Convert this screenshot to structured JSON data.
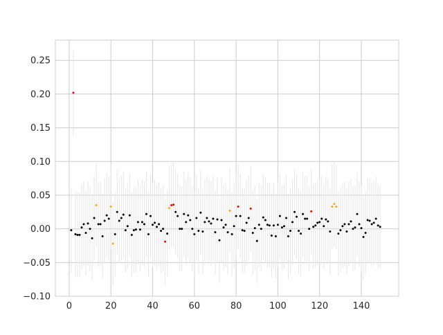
{
  "chart_data": {
    "type": "scatter",
    "title": "",
    "xlabel": "",
    "ylabel": "",
    "xlim": [
      -6.6,
      157.9
    ],
    "ylim": [
      -0.1,
      0.28
    ],
    "xticks": [
      0,
      20,
      40,
      60,
      80,
      100,
      120,
      140
    ],
    "yticks": [
      -0.1,
      -0.05,
      0.0,
      0.05,
      0.1,
      0.15,
      0.2,
      0.25
    ],
    "ytick_labels": [
      "−0.10",
      "−0.05",
      "0.00",
      "0.05",
      "0.10",
      "0.15",
      "0.20",
      "0.25"
    ],
    "grid": true,
    "yerr": 0.063,
    "colors": {
      "black": "#000000",
      "orange": "#ffa500",
      "red": "#ff0000",
      "errorbar": "#e6e6e6",
      "grid": "#cccccc"
    },
    "points": [
      [
        1,
        -0.002,
        "black"
      ],
      [
        2,
        0.202,
        "red"
      ],
      [
        3,
        -0.008,
        "black"
      ],
      [
        4,
        -0.009,
        "black"
      ],
      [
        5,
        -0.009,
        "black"
      ],
      [
        6,
        0.002,
        "black"
      ],
      [
        7,
        0.007,
        "black"
      ],
      [
        8,
        -0.006,
        "black"
      ],
      [
        9,
        0.008,
        "black"
      ],
      [
        10,
        0.0,
        "black"
      ],
      [
        11,
        -0.014,
        "black"
      ],
      [
        12,
        0.016,
        "black"
      ],
      [
        13,
        0.035,
        "orange"
      ],
      [
        14,
        0.007,
        "black"
      ],
      [
        15,
        0.007,
        "black"
      ],
      [
        16,
        -0.011,
        "black"
      ],
      [
        17,
        0.012,
        "black"
      ],
      [
        18,
        0.02,
        "black"
      ],
      [
        19,
        0.015,
        "black"
      ],
      [
        20,
        0.033,
        "orange"
      ],
      [
        21,
        -0.022,
        "orange"
      ],
      [
        22,
        -0.008,
        "black"
      ],
      [
        23,
        0.025,
        "black"
      ],
      [
        24,
        0.012,
        "black"
      ],
      [
        25,
        0.016,
        "black"
      ],
      [
        26,
        0.021,
        "black"
      ],
      [
        27,
        -0.002,
        "black"
      ],
      [
        28,
        0.004,
        "black"
      ],
      [
        29,
        0.02,
        "black"
      ],
      [
        30,
        -0.009,
        "black"
      ],
      [
        31,
        -0.002,
        "black"
      ],
      [
        32,
        -0.001,
        "black"
      ],
      [
        33,
        0.01,
        "black"
      ],
      [
        34,
        -0.001,
        "black"
      ],
      [
        35,
        0.01,
        "black"
      ],
      [
        36,
        0.007,
        "black"
      ],
      [
        37,
        0.022,
        "black"
      ],
      [
        38,
        -0.008,
        "black"
      ],
      [
        39,
        0.019,
        "black"
      ],
      [
        40,
        0.006,
        "black"
      ],
      [
        41,
        0.009,
        "black"
      ],
      [
        42,
        0.003,
        "black"
      ],
      [
        43,
        0.007,
        "black"
      ],
      [
        44,
        -0.003,
        "black"
      ],
      [
        45,
        0.0,
        "black"
      ],
      [
        46,
        -0.019,
        "red"
      ],
      [
        47,
        -0.007,
        "black"
      ],
      [
        48,
        0.031,
        "orange"
      ],
      [
        49,
        0.035,
        "red"
      ],
      [
        50,
        0.036,
        "red"
      ],
      [
        51,
        0.025,
        "black"
      ],
      [
        52,
        0.019,
        "black"
      ],
      [
        53,
        0.0,
        "black"
      ],
      [
        54,
        0.0,
        "black"
      ],
      [
        55,
        0.022,
        "black"
      ],
      [
        56,
        0.01,
        "black"
      ],
      [
        57,
        0.02,
        "black"
      ],
      [
        58,
        0.013,
        "black"
      ],
      [
        59,
        0.0,
        "black"
      ],
      [
        60,
        -0.008,
        "black"
      ],
      [
        61,
        0.016,
        "black"
      ],
      [
        62,
        -0.003,
        "black"
      ],
      [
        63,
        0.024,
        "black"
      ],
      [
        64,
        -0.004,
        "black"
      ],
      [
        65,
        0.01,
        "black"
      ],
      [
        66,
        0.016,
        "black"
      ],
      [
        67,
        0.011,
        "black"
      ],
      [
        68,
        0.008,
        "black"
      ],
      [
        69,
        0.015,
        "black"
      ],
      [
        70,
        -0.005,
        "black"
      ],
      [
        71,
        0.014,
        "black"
      ],
      [
        72,
        -0.017,
        "black"
      ],
      [
        73,
        0.013,
        "black"
      ],
      [
        74,
        0.002,
        "black"
      ],
      [
        75,
        0.006,
        "black"
      ],
      [
        76,
        -0.005,
        "black"
      ],
      [
        77,
        0.027,
        "orange"
      ],
      [
        78,
        -0.008,
        "black"
      ],
      [
        79,
        0.004,
        "black"
      ],
      [
        80,
        0.019,
        "black"
      ],
      [
        81,
        0.033,
        "red"
      ],
      [
        82,
        0.019,
        "black"
      ],
      [
        83,
        -0.002,
        "black"
      ],
      [
        84,
        -0.003,
        "black"
      ],
      [
        85,
        0.009,
        "black"
      ],
      [
        86,
        0.016,
        "black"
      ],
      [
        87,
        0.03,
        "red"
      ],
      [
        88,
        -0.006,
        "black"
      ],
      [
        89,
        0.001,
        "black"
      ],
      [
        90,
        -0.018,
        "black"
      ],
      [
        91,
        0.006,
        "black"
      ],
      [
        92,
        0.0,
        "black"
      ],
      [
        93,
        0.017,
        "black"
      ],
      [
        94,
        0.013,
        "black"
      ],
      [
        95,
        0.006,
        "black"
      ],
      [
        96,
        0.005,
        "black"
      ],
      [
        97,
        -0.01,
        "black"
      ],
      [
        98,
        0.005,
        "black"
      ],
      [
        99,
        -0.011,
        "black"
      ],
      [
        100,
        0.006,
        "black"
      ],
      [
        101,
        0.019,
        "black"
      ],
      [
        102,
        0.002,
        "black"
      ],
      [
        103,
        0.004,
        "black"
      ],
      [
        104,
        0.016,
        "black"
      ],
      [
        105,
        -0.011,
        "black"
      ],
      [
        106,
        -0.003,
        "black"
      ],
      [
        107,
        0.01,
        "black"
      ],
      [
        108,
        0.025,
        "black"
      ],
      [
        109,
        0.018,
        "black"
      ],
      [
        110,
        -0.003,
        "black"
      ],
      [
        111,
        -0.007,
        "black"
      ],
      [
        112,
        0.022,
        "black"
      ],
      [
        113,
        0.015,
        "black"
      ],
      [
        114,
        0.015,
        "black"
      ],
      [
        115,
        0.0,
        "black"
      ],
      [
        116,
        0.026,
        "red"
      ],
      [
        117,
        0.003,
        "black"
      ],
      [
        118,
        0.005,
        "black"
      ],
      [
        119,
        0.009,
        "black"
      ],
      [
        120,
        0.01,
        "black"
      ],
      [
        121,
        0.015,
        "black"
      ],
      [
        122,
        0.004,
        "black"
      ],
      [
        123,
        0.014,
        "black"
      ],
      [
        124,
        0.011,
        "black"
      ],
      [
        125,
        -0.004,
        "black"
      ],
      [
        126,
        0.033,
        "orange"
      ],
      [
        127,
        0.037,
        "orange"
      ],
      [
        128,
        0.033,
        "orange"
      ],
      [
        129,
        -0.007,
        "black"
      ],
      [
        130,
        -0.002,
        "black"
      ],
      [
        131,
        0.004,
        "black"
      ],
      [
        132,
        0.007,
        "black"
      ],
      [
        133,
        -0.004,
        "black"
      ],
      [
        134,
        0.007,
        "black"
      ],
      [
        135,
        0.011,
        "black"
      ],
      [
        136,
        0.0,
        "black"
      ],
      [
        137,
        0.002,
        "black"
      ],
      [
        138,
        0.022,
        "black"
      ],
      [
        139,
        0.007,
        "black"
      ],
      [
        140,
        0.001,
        "black"
      ],
      [
        141,
        -0.012,
        "black"
      ],
      [
        142,
        -0.006,
        "black"
      ],
      [
        143,
        0.013,
        "black"
      ],
      [
        144,
        0.012,
        "black"
      ],
      [
        145,
        0.007,
        "black"
      ],
      [
        146,
        0.009,
        "black"
      ],
      [
        147,
        0.015,
        "black"
      ],
      [
        148,
        0.005,
        "black"
      ],
      [
        149,
        0.003,
        "black"
      ]
    ]
  }
}
